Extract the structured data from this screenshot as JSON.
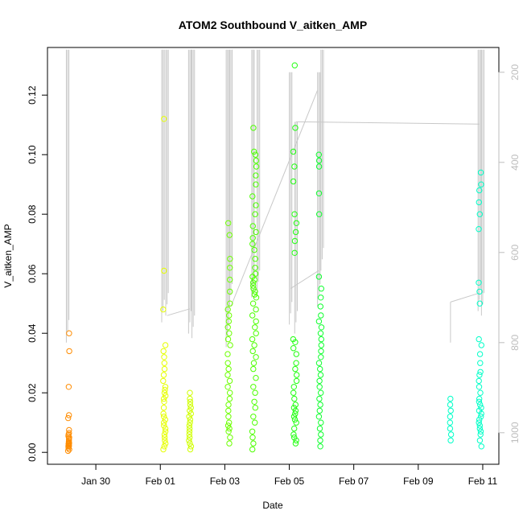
{
  "chart_data": {
    "type": "scatter",
    "title": "ATOM2 Southbound V_aitken_AMP",
    "xlabel": "Date",
    "ylabel": "V_aitken_AMP",
    "xlim": [
      "2016-01-28T12:00",
      "2016-02-11T12:00"
    ],
    "ylim": [
      -0.004,
      0.136
    ],
    "y_ticks": [
      0.0,
      0.02,
      0.04,
      0.06,
      0.08,
      0.1,
      0.12
    ],
    "y_tick_labels": [
      "0.00",
      "0.02",
      "0.04",
      "0.06",
      "0.08",
      "0.10",
      "0.12"
    ],
    "x_ticks": [
      "2016-01-30",
      "2016-02-01",
      "2016-02-03",
      "2016-02-05",
      "2016-02-07",
      "2016-02-09",
      "2016-02-11"
    ],
    "x_tick_labels": [
      "Jan 30",
      "Feb 01",
      "Feb 03",
      "Feb 05",
      "Feb 07",
      "Feb 09",
      "Feb 11"
    ],
    "secondary_axis": {
      "side": "right",
      "color": "#bdbdbd",
      "ylim": [
        1070,
        145
      ],
      "ticks": [
        200,
        400,
        600,
        800,
        1000
      ],
      "tick_labels": [
        "200",
        "400",
        "600",
        "800",
        "1000"
      ]
    },
    "grid": false,
    "marker": "open-circle",
    "colors": {
      "jan29": "#ff8c00",
      "feb01": "#e6ff00",
      "feb02": "#d0ff00",
      "feb03": "#6cff00",
      "feb04": "#4cff00",
      "feb05": "#20ff10",
      "feb06": "#10ff30",
      "feb11": "#00ffc8",
      "altitude_line": "#c8c8c8"
    },
    "series": [
      {
        "color_key": "jan29",
        "x": "2016-01-29T03:50",
        "x_spread_hours": 1.0,
        "values": [
          0.0005,
          0.001,
          0.0015,
          0.002,
          0.0022,
          0.0025,
          0.0028,
          0.003,
          0.0032,
          0.0035,
          0.004,
          0.0045,
          0.005,
          0.0055,
          0.006,
          0.0065,
          0.0075,
          0.0115,
          0.0125,
          0.022,
          0.034,
          0.04
        ]
      },
      {
        "color_key": "feb01",
        "x": "2016-02-01T03:00",
        "x_spread_hours": 2.0,
        "values": [
          0.001,
          0.002,
          0.003,
          0.004,
          0.005,
          0.006,
          0.007,
          0.008,
          0.009,
          0.01,
          0.011,
          0.012,
          0.013,
          0.015,
          0.017,
          0.018,
          0.019,
          0.02,
          0.021,
          0.022,
          0.024,
          0.026,
          0.028,
          0.03,
          0.032,
          0.034,
          0.036,
          0.048,
          0.061,
          0.112
        ]
      },
      {
        "color_key": "feb02",
        "x": "2016-02-01T22:00",
        "x_spread_hours": 2.0,
        "values": [
          0.001,
          0.002,
          0.003,
          0.004,
          0.005,
          0.006,
          0.007,
          0.008,
          0.009,
          0.01,
          0.011,
          0.012,
          0.013,
          0.014,
          0.015,
          0.016,
          0.017,
          0.018,
          0.02
        ]
      },
      {
        "color_key": "feb03",
        "x": "2016-02-03T03:00",
        "x_spread_hours": 2.0,
        "values": [
          0.003,
          0.005,
          0.007,
          0.008,
          0.009,
          0.01,
          0.012,
          0.014,
          0.016,
          0.018,
          0.02,
          0.022,
          0.024,
          0.026,
          0.028,
          0.03,
          0.033,
          0.036,
          0.038,
          0.04,
          0.042,
          0.044,
          0.046,
          0.048,
          0.05,
          0.054,
          0.058,
          0.062,
          0.065,
          0.073,
          0.077
        ]
      },
      {
        "color_key": "feb04",
        "x": "2016-02-03T22:00",
        "x_spread_hours": 3.0,
        "values": [
          0.001,
          0.003,
          0.005,
          0.007,
          0.01,
          0.012,
          0.015,
          0.017,
          0.02,
          0.022,
          0.025,
          0.028,
          0.03,
          0.032,
          0.034,
          0.036,
          0.038,
          0.04,
          0.042,
          0.044,
          0.046,
          0.048,
          0.05,
          0.052,
          0.053,
          0.054,
          0.055,
          0.056,
          0.057,
          0.058,
          0.059,
          0.06,
          0.062,
          0.065,
          0.068,
          0.07,
          0.072,
          0.074,
          0.076,
          0.08,
          0.083,
          0.086,
          0.09,
          0.093,
          0.096,
          0.098,
          0.1,
          0.101,
          0.109
        ]
      },
      {
        "color_key": "feb05",
        "x": "2016-02-05T04:00",
        "x_spread_hours": 3.0,
        "values": [
          0.003,
          0.004,
          0.005,
          0.006,
          0.008,
          0.01,
          0.011,
          0.012,
          0.013,
          0.014,
          0.015,
          0.016,
          0.018,
          0.02,
          0.022,
          0.024,
          0.026,
          0.028,
          0.03,
          0.033,
          0.035,
          0.037,
          0.038,
          0.067,
          0.071,
          0.074,
          0.077,
          0.08,
          0.091,
          0.096,
          0.101,
          0.109,
          0.13
        ]
      },
      {
        "color_key": "feb06",
        "x": "2016-02-05T23:00",
        "x_spread_hours": 2.0,
        "values": [
          0.002,
          0.004,
          0.006,
          0.008,
          0.01,
          0.012,
          0.014,
          0.016,
          0.018,
          0.02,
          0.022,
          0.024,
          0.026,
          0.028,
          0.03,
          0.032,
          0.034,
          0.036,
          0.038,
          0.04,
          0.042,
          0.044,
          0.046,
          0.049,
          0.052,
          0.055,
          0.059,
          0.08,
          0.087,
          0.096,
          0.098,
          0.1
        ]
      },
      {
        "color_key": "feb11",
        "x": "2016-02-10T00:00",
        "x_spread_hours": 1.0,
        "values": [
          0.004,
          0.006,
          0.008,
          0.01,
          0.012,
          0.014,
          0.016,
          0.018
        ]
      },
      {
        "color_key": "feb11",
        "x": "2016-02-10T22:00",
        "x_spread_hours": 2.0,
        "values": [
          0.002,
          0.004,
          0.006,
          0.007,
          0.008,
          0.009,
          0.01,
          0.011,
          0.012,
          0.013,
          0.014,
          0.015,
          0.016,
          0.017,
          0.018,
          0.02,
          0.022,
          0.024,
          0.026,
          0.027,
          0.03,
          0.033,
          0.036,
          0.038,
          0.05,
          0.054,
          0.057,
          0.075,
          0.08,
          0.084,
          0.088,
          0.09,
          0.094
        ]
      }
    ],
    "altitude_trace": {
      "color_key": "altitude_line",
      "segments": [
        {
          "x": "2016-01-29T03:00",
          "alt_min": 150,
          "alt_max": 800
        },
        {
          "x": "2016-02-01T02:00",
          "alt_min": 150,
          "alt_max": 755
        },
        {
          "x": "2016-02-01T05:00",
          "alt_min": 150,
          "alt_max": 740
        },
        {
          "x": "2016-02-01T22:00",
          "alt_min": 150,
          "alt_max": 780
        },
        {
          "x": "2016-02-02T00:30",
          "alt_min": 150,
          "alt_max": 790
        },
        {
          "x": "2016-02-03T02:00",
          "alt_min": 150,
          "alt_max": 810
        },
        {
          "x": "2016-02-03T04:30",
          "alt_min": 150,
          "alt_max": 720
        },
        {
          "x": "2016-02-03T21:00",
          "alt_min": 150,
          "alt_max": 700
        },
        {
          "x": "2016-02-04T01:00",
          "alt_min": 150,
          "alt_max": 690
        },
        {
          "x": "2016-02-05T01:00",
          "alt_min": 200,
          "alt_max": 760
        },
        {
          "x": "2016-02-05T05:00",
          "alt_min": 310,
          "alt_max": 780
        },
        {
          "x": "2016-02-05T22:00",
          "alt_min": 200,
          "alt_max": 720
        },
        {
          "x": "2016-02-06T00:30",
          "alt_min": 150,
          "alt_max": 640
        },
        {
          "x": "2016-02-10T21:30",
          "alt_min": 150,
          "alt_max": 730
        },
        {
          "x": "2016-02-11T00:00",
          "alt_min": 150,
          "alt_max": 740
        }
      ],
      "connectors": [
        {
          "from": [
            "2016-02-03T04:30",
            720
          ],
          "to": [
            "2016-02-05T21:00",
            240
          ]
        },
        {
          "from": [
            "2016-02-05T05:00",
            310
          ],
          "to": [
            "2016-02-10T21:30",
            315
          ]
        },
        {
          "from": [
            "2016-02-05T01:00",
            680
          ],
          "to": [
            "2016-02-05T22:00",
            640
          ]
        },
        {
          "from": [
            "2016-02-01T05:00",
            740
          ],
          "to": [
            "2016-02-01T22:00",
            725
          ]
        },
        {
          "from": [
            "2016-02-10T00:00",
            800
          ],
          "to": [
            "2016-02-10T00:00",
            710
          ]
        },
        {
          "from": [
            "2016-02-10T00:00",
            710
          ],
          "to": [
            "2016-02-10T21:30",
            690
          ]
        }
      ]
    }
  }
}
